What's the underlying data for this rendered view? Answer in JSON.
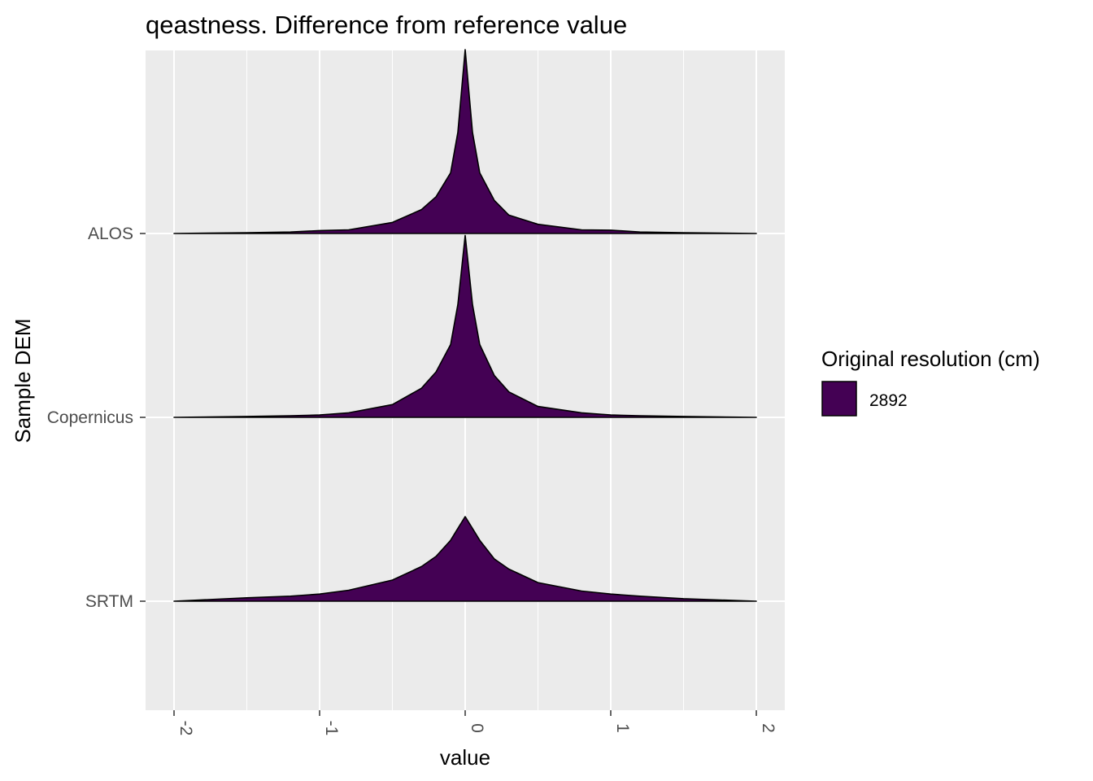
{
  "chart_data": {
    "type": "area",
    "subtype": "ridgeline-density",
    "title": "qeastness. Difference from reference value",
    "xlabel": "value",
    "ylabel": "Sample DEM",
    "xlim": [
      -2.2,
      2.2
    ],
    "x_ticks": [
      -2,
      -1,
      0,
      1,
      2
    ],
    "x_tick_labels": [
      "-2",
      "-1",
      "0",
      "1",
      "2"
    ],
    "categories": [
      "ALOS",
      "Copernicus",
      "SRTM"
    ],
    "grid": true,
    "legend": {
      "title": "Original resolution (cm)",
      "placement": "right",
      "entries": [
        {
          "label": "2892",
          "color": "#440154"
        }
      ]
    },
    "fill_color": "#440154",
    "series": [
      {
        "name": "ALOS",
        "peak": 1.0,
        "x": [
          -2,
          -1.5,
          -1.2,
          -1.0,
          -0.8,
          -0.5,
          -0.3,
          -0.2,
          -0.1,
          -0.05,
          0,
          0.05,
          0.1,
          0.2,
          0.3,
          0.5,
          0.8,
          1.0,
          1.2,
          1.5,
          2
        ],
        "density": [
          0.0,
          0.004,
          0.008,
          0.016,
          0.02,
          0.06,
          0.13,
          0.2,
          0.33,
          0.55,
          1.0,
          0.55,
          0.33,
          0.18,
          0.1,
          0.05,
          0.02,
          0.018,
          0.008,
          0.004,
          0.0
        ]
      },
      {
        "name": "Copernicus",
        "peak": 0.99,
        "x": [
          -2,
          -1.5,
          -1.2,
          -1.0,
          -0.8,
          -0.5,
          -0.3,
          -0.2,
          -0.1,
          -0.05,
          0,
          0.05,
          0.1,
          0.2,
          0.3,
          0.5,
          0.8,
          1.0,
          1.2,
          1.5,
          2
        ],
        "density": [
          0.0,
          0.005,
          0.009,
          0.013,
          0.025,
          0.07,
          0.16,
          0.25,
          0.4,
          0.62,
          1.0,
          0.62,
          0.4,
          0.23,
          0.14,
          0.06,
          0.025,
          0.013,
          0.009,
          0.005,
          0.0
        ]
      },
      {
        "name": "SRTM",
        "peak": 0.46,
        "x": [
          -2,
          -1.5,
          -1.2,
          -1.0,
          -0.8,
          -0.5,
          -0.3,
          -0.2,
          -0.1,
          -0.05,
          0,
          0.05,
          0.1,
          0.2,
          0.3,
          0.5,
          0.8,
          1.0,
          1.2,
          1.5,
          2
        ],
        "density": [
          0.0,
          0.04,
          0.06,
          0.085,
          0.13,
          0.25,
          0.41,
          0.53,
          0.72,
          0.86,
          1.0,
          0.86,
          0.72,
          0.5,
          0.38,
          0.22,
          0.12,
          0.085,
          0.06,
          0.03,
          0.0
        ]
      }
    ]
  }
}
